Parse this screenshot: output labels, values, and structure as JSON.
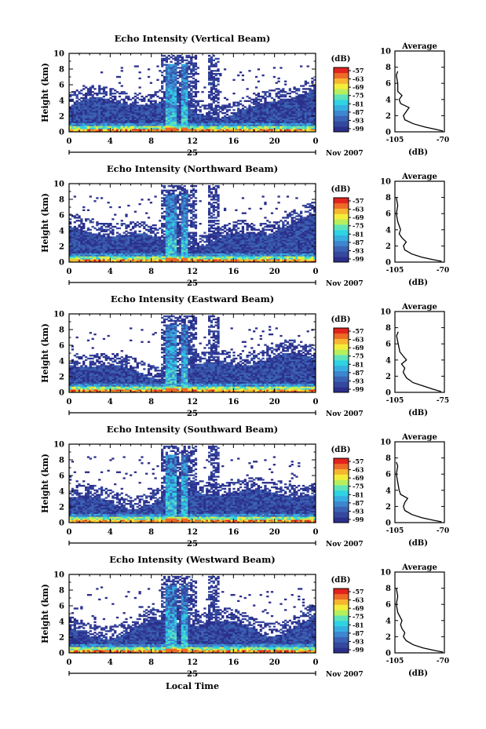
{
  "figure": {
    "x_axis_label": "Local Time",
    "date_label": "Nov 2007",
    "day_label": "25",
    "unit_label": "(dB)",
    "y_axis_label": "Height (km)",
    "avg_title": "Average",
    "avg_xlabel": "(dB)"
  },
  "colorbar": {
    "tick_labels": [
      "-57",
      "-63",
      "-69",
      "-75",
      "-81",
      "-87",
      "-93",
      "-99"
    ],
    "colors": [
      "#2b2f8c",
      "#34489e",
      "#3b63b5",
      "#3e86cf",
      "#36aee0",
      "#2ed3e4",
      "#5fe3b9",
      "#b6ef5c",
      "#f4ee3a",
      "#f6b630",
      "#ee6a27",
      "#e2231d"
    ]
  },
  "chart_data": [
    {
      "type": "heatmap",
      "title": "Echo Intensity (Vertical Beam)",
      "x_ticks": [
        "0",
        "4",
        "8",
        "12",
        "16",
        "20",
        "0"
      ],
      "y_ticks": [
        "0",
        "2",
        "4",
        "6",
        "8",
        "10"
      ],
      "xlim": [
        0,
        24
      ],
      "ylim": [
        0,
        10
      ],
      "colorbar_range_db": [
        -99,
        -57
      ],
      "avg_xlim": [
        -105,
        -70
      ],
      "avg_x_ticks": [
        "-105",
        "-70"
      ],
      "average_profile": {
        "height_km": [
          0.1,
          0.3,
          0.6,
          1.0,
          1.5,
          2.0,
          2.5,
          3.0,
          3.5,
          4.0,
          4.5,
          5.0,
          6.0,
          7.0,
          7.5
        ],
        "db": [
          -71,
          -76,
          -84,
          -92,
          -98,
          -99,
          -97,
          -95,
          -101,
          -102,
          -100,
          -103,
          -103,
          -104,
          -103
        ]
      }
    },
    {
      "type": "heatmap",
      "title": "Echo Intensity (Northward Beam)",
      "x_ticks": [
        "0",
        "4",
        "8",
        "12",
        "16",
        "20",
        "0"
      ],
      "y_ticks": [
        "0",
        "2",
        "4",
        "6",
        "8",
        "10"
      ],
      "xlim": [
        0,
        24
      ],
      "ylim": [
        0,
        10
      ],
      "colorbar_range_db": [
        -99,
        -57
      ],
      "avg_xlim": [
        -105,
        -70
      ],
      "avg_x_ticks": [
        "-105",
        "-70"
      ],
      "average_profile": {
        "height_km": [
          0.1,
          0.3,
          0.6,
          1.0,
          1.5,
          2.0,
          2.5,
          3.0,
          3.5,
          4.0,
          5.0,
          6.0,
          7.0,
          8.0
        ],
        "db": [
          -72,
          -78,
          -86,
          -93,
          -98,
          -99,
          -97,
          -100,
          -102,
          -101,
          -103,
          -104,
          -103,
          -104
        ]
      }
    },
    {
      "type": "heatmap",
      "title": "Echo Intensity (Eastward Beam)",
      "x_ticks": [
        "0",
        "4",
        "8",
        "12",
        "16",
        "20",
        "0"
      ],
      "y_ticks": [
        "0",
        "2",
        "4",
        "6",
        "8",
        "10"
      ],
      "xlim": [
        0,
        24
      ],
      "ylim": [
        0,
        10
      ],
      "colorbar_range_db": [
        -99,
        -57
      ],
      "avg_xlim": [
        -105,
        -75
      ],
      "avg_x_ticks": [
        "-105",
        "-75"
      ],
      "average_profile": {
        "height_km": [
          0.1,
          0.4,
          0.8,
          1.2,
          1.8,
          2.5,
          3.0,
          3.5,
          4.0,
          4.5,
          5.0,
          6.0,
          7.0,
          7.5
        ],
        "db": [
          -77,
          -82,
          -88,
          -94,
          -98,
          -100,
          -99,
          -101,
          -98,
          -100,
          -102,
          -103,
          -104,
          -103
        ]
      }
    },
    {
      "type": "heatmap",
      "title": "Echo Intensity (Southward Beam)",
      "x_ticks": [
        "0",
        "4",
        "8",
        "12",
        "16",
        "20",
        "0"
      ],
      "y_ticks": [
        "0",
        "2",
        "4",
        "6",
        "8",
        "10"
      ],
      "xlim": [
        0,
        24
      ],
      "ylim": [
        0,
        10
      ],
      "colorbar_range_db": [
        -99,
        -57
      ],
      "avg_xlim": [
        -105,
        -70
      ],
      "avg_x_ticks": [
        "-105",
        "-70"
      ],
      "average_profile": {
        "height_km": [
          0.1,
          0.3,
          0.6,
          1.0,
          1.5,
          2.0,
          2.5,
          3.0,
          3.5,
          4.0,
          5.0,
          6.0,
          7.0,
          7.5
        ],
        "db": [
          -72,
          -78,
          -86,
          -93,
          -98,
          -99,
          -98,
          -96,
          -101,
          -102,
          -103,
          -104,
          -103,
          -104
        ]
      }
    },
    {
      "type": "heatmap",
      "title": "Echo Intensity (Westward Beam)",
      "x_ticks": [
        "0",
        "4",
        "8",
        "12",
        "16",
        "20",
        "0"
      ],
      "y_ticks": [
        "0",
        "2",
        "4",
        "6",
        "8",
        "10"
      ],
      "xlim": [
        0,
        24
      ],
      "ylim": [
        0,
        10
      ],
      "colorbar_range_db": [
        -99,
        -57
      ],
      "avg_xlim": [
        -105,
        -70
      ],
      "avg_x_ticks": [
        "-105",
        "-70"
      ],
      "average_profile": {
        "height_km": [
          0.1,
          0.3,
          0.6,
          1.0,
          1.5,
          2.0,
          2.5,
          3.0,
          3.5,
          4.0,
          5.0,
          6.0,
          7.0,
          8.0
        ],
        "db": [
          -71,
          -77,
          -85,
          -92,
          -97,
          -99,
          -98,
          -100,
          -101,
          -100,
          -103,
          -104,
          -103,
          -104
        ]
      }
    }
  ]
}
